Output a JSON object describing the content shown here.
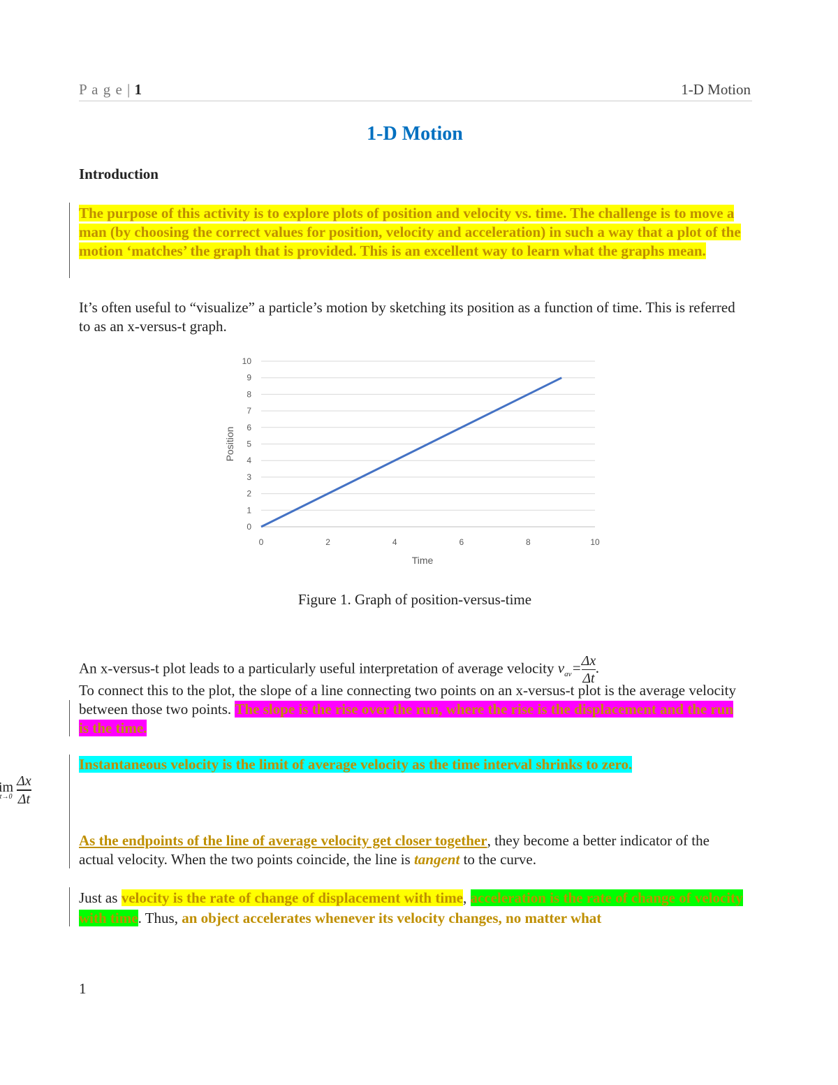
{
  "header": {
    "page_prefix": "P a g e |",
    "page_number": "1",
    "running_title": "1-D Motion"
  },
  "title": "1-D Motion",
  "section_heading": "Introduction",
  "intro": "The purpose of this activity is to explore plots of position and velocity vs. time. The challenge is to move a man (by choosing the correct values for position, velocity and acceleration) in such a way that a plot of the motion ‘matches’ the graph that is provided. This is an excellent way to learn what the graphs mean.",
  "para1": "It’s often useful to “visualize” a particle’s motion by sketching its position as a function of time. This is referred to as an x-versus-t graph.",
  "caption": "Figure 1. Graph of position-versus-time",
  "para2": {
    "text": "An x-versus-t plot leads to a particularly useful interpretation of average velocity",
    "eq_v": "v",
    "eq_sub": "av",
    "eq_num": "Δx",
    "eq_den": "Δt",
    "eq_end": "."
  },
  "para3": {
    "plain": "To connect this to the plot, the slope of a line connecting two points on an x-versus-t plot is the average velocity between those two points.",
    "highlight": "The slope is the rise over the run, where the rise is the displacement and the run is the time."
  },
  "para4": "Instantaneous velocity is the limit of average velocity as the time interval shrinks to zero.",
  "limit_eq": {
    "lim": "im",
    "sub": "t→0",
    "num": "Δx",
    "den": "Δt"
  },
  "para5": {
    "underlined": "As the endpoints of the line of average velocity get closer together",
    "rest1": ", they become a better indicator of the actual velocity. When the two points coincide, the line is",
    "italic": "tangent",
    "rest2": "to the curve."
  },
  "para6": {
    "a": "Just as",
    "b": "velocity is the rate of change of displacement with time",
    "c": ",",
    "d": "acceleration is the rate of change of velocity with time",
    "e": ". Thus,",
    "f": "an object accelerates whenever its velocity changes, no matter what"
  },
  "footer_number": "1",
  "colors": {
    "title": "#0070c0",
    "highlight_text": "#bf8f00",
    "line": "#4472c4"
  },
  "chart_data": {
    "type": "line",
    "xlabel": "Time",
    "ylabel": "Position",
    "xlim": [
      0,
      10
    ],
    "ylim": [
      0,
      10
    ],
    "xticks": [
      "0",
      "2",
      "4",
      "6",
      "8",
      "10"
    ],
    "yticks": [
      "0",
      "1",
      "2",
      "3",
      "4",
      "5",
      "6",
      "7",
      "8",
      "9",
      "10"
    ],
    "grid": true,
    "x": [
      0,
      9
    ],
    "y": [
      0,
      9
    ]
  }
}
